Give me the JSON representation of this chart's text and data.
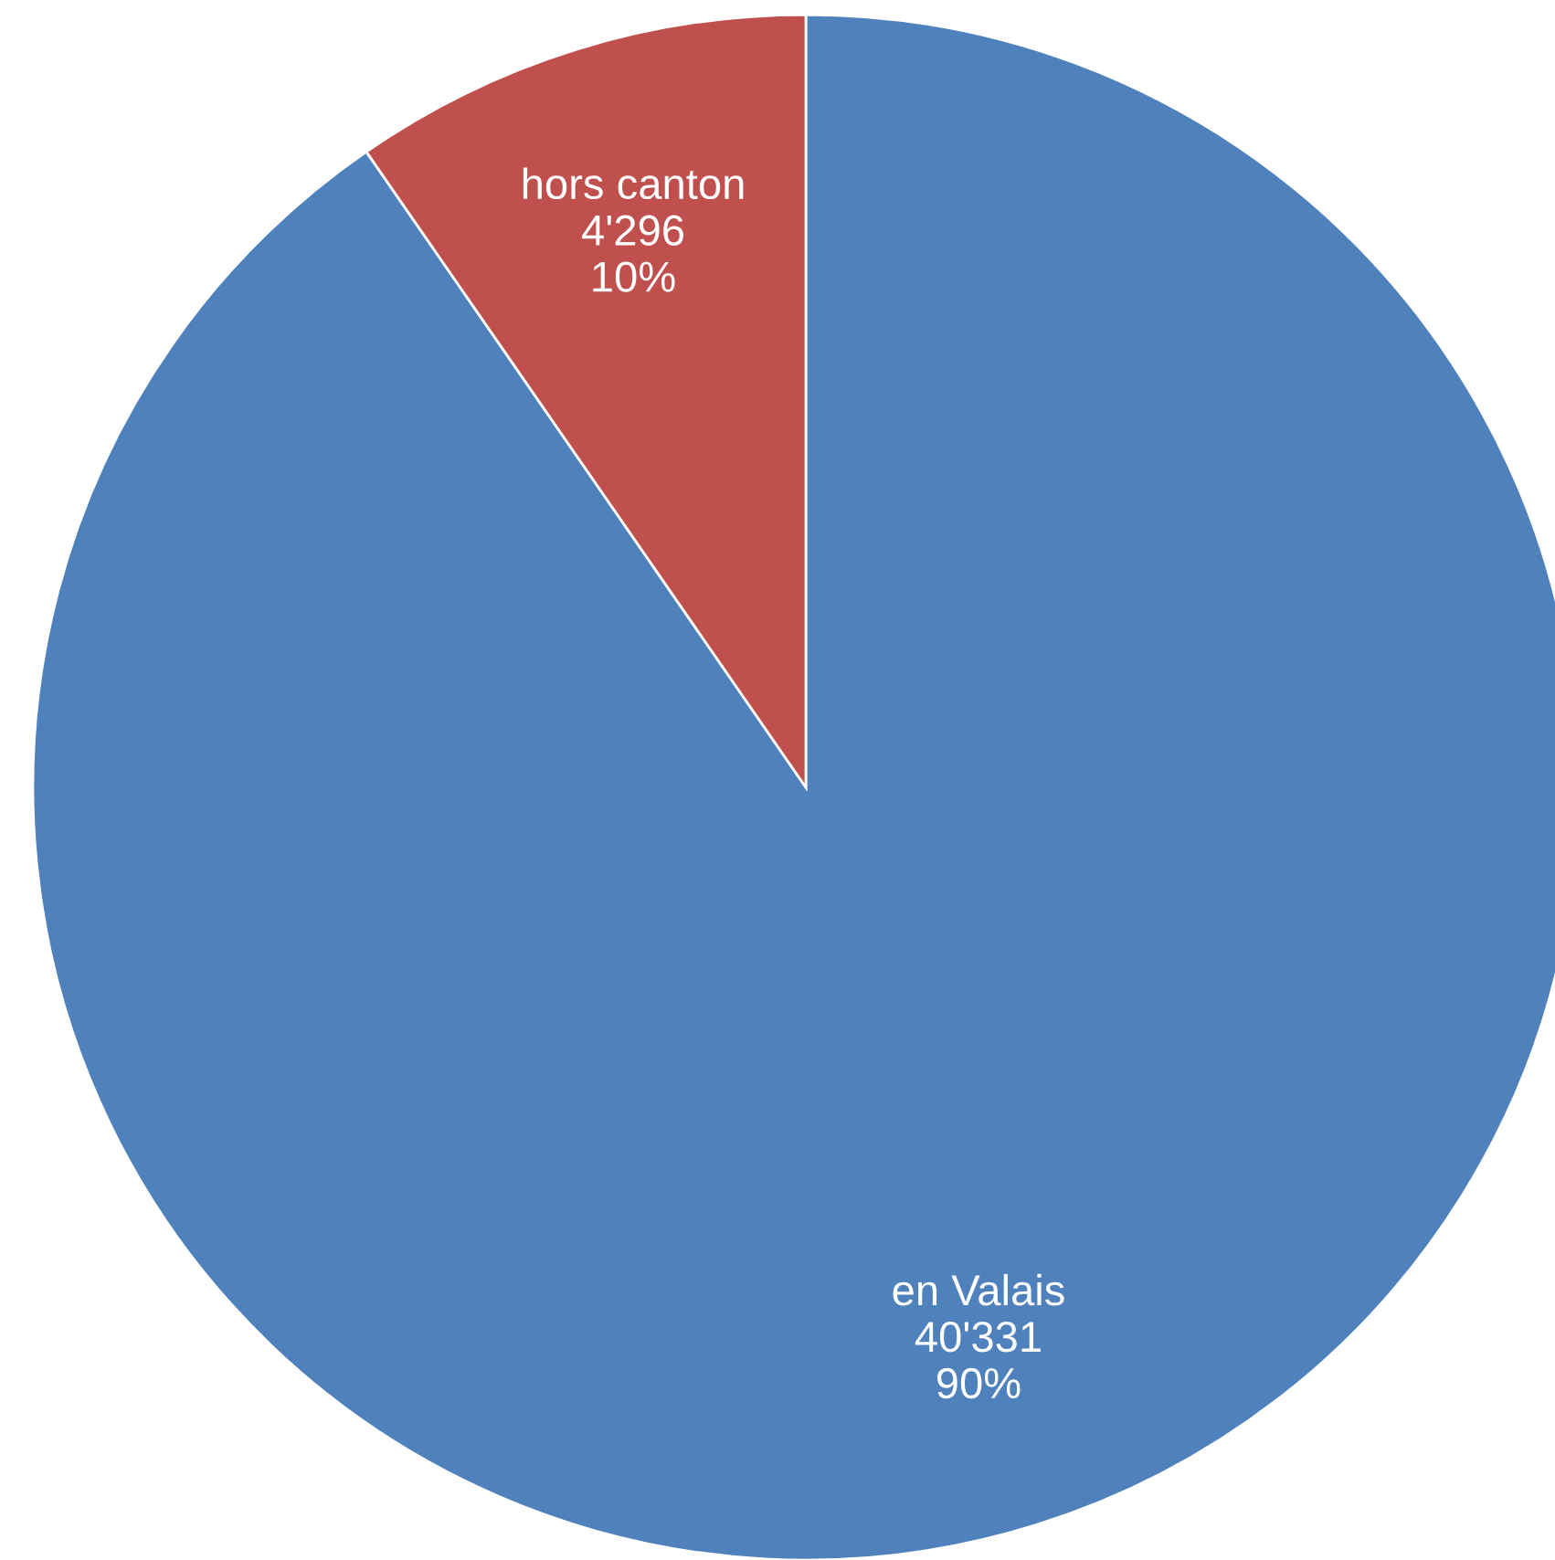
{
  "chart_data": {
    "type": "pie",
    "categories": [
      "en Valais",
      "hors canton"
    ],
    "values": [
      40331,
      4296
    ],
    "value_labels": [
      "40'331\n90%",
      "4'296\n10%"
    ],
    "colors": [
      "#4f81bd",
      "#c0504d"
    ]
  }
}
